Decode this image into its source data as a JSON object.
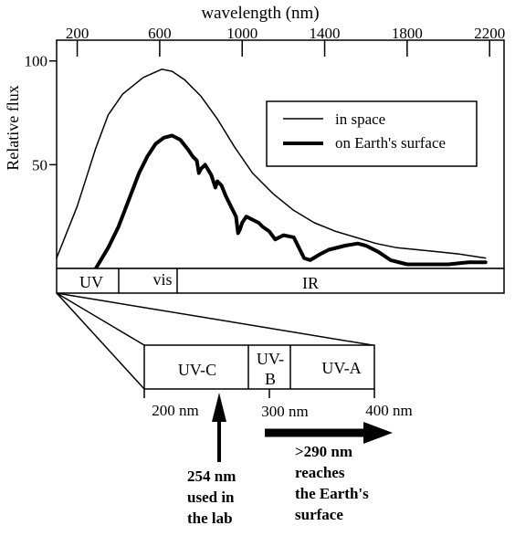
{
  "chart_data": {
    "type": "line",
    "xlabel": "wavelength (nm)",
    "ylabel": "Relative flux",
    "xlim": [
      100,
      2270
    ],
    "ylim": [
      0,
      110
    ],
    "x_ticks": [
      200,
      600,
      1000,
      1400,
      1800,
      2200
    ],
    "y_ticks": [
      50,
      100
    ],
    "legend": {
      "placement": "top-right"
    },
    "series": [
      {
        "name": "in space",
        "line": "thin",
        "x": [
          100,
          200,
          290,
          350,
          420,
          520,
          610,
          660,
          720,
          800,
          880,
          960,
          1050,
          1150,
          1250,
          1350,
          1450,
          1550,
          1650,
          1750,
          1850,
          1950,
          2050,
          2180
        ],
        "y": [
          5,
          30,
          58,
          74,
          84,
          92,
          96,
          95,
          91,
          83,
          72,
          59,
          46,
          36,
          28,
          22,
          18,
          15,
          12,
          10,
          9,
          8,
          7,
          5
        ]
      },
      {
        "name": "on Earth's surface",
        "line": "thick",
        "x": [
          290,
          350,
          400,
          450,
          500,
          540,
          580,
          620,
          660,
          700,
          740,
          760,
          780,
          790,
          800,
          820,
          850,
          870,
          880,
          900,
          920,
          950,
          970,
          980,
          990,
          1000,
          1020,
          1080,
          1100,
          1130,
          1160,
          1200,
          1250,
          1300,
          1330,
          1380,
          1420,
          1500,
          1560,
          1600,
          1660,
          1720,
          1800,
          1900,
          2000,
          2100,
          2180
        ],
        "y": [
          0,
          10,
          20,
          33,
          46,
          54,
          60,
          63,
          64,
          62,
          57,
          54,
          52,
          46,
          48,
          50,
          45,
          39,
          42,
          40,
          35,
          29,
          25,
          17,
          19,
          22,
          25,
          22,
          20,
          18,
          14,
          16,
          15,
          5,
          4,
          7,
          9,
          11,
          12,
          11,
          8,
          4,
          2,
          2,
          2,
          3,
          3
        ]
      }
    ],
    "spectrum_bar": [
      {
        "label": "UV",
        "from": 100,
        "to": 400
      },
      {
        "label": "vis",
        "from": 400,
        "to": 700
      },
      {
        "label": "IR",
        "from": 700,
        "to": 2270
      }
    ],
    "uv_detail": {
      "bands": [
        {
          "label": "UV-C",
          "from": 200,
          "to": 280
        },
        {
          "label": "UV-B",
          "lines": [
            "UV-",
            "B"
          ],
          "from": 280,
          "to": 320
        },
        {
          "label": "UV-A",
          "from": 320,
          "to": 400
        }
      ],
      "ticks": [
        {
          "value": 200,
          "label": "200 nm"
        },
        {
          "value": 300,
          "label": "300 nm"
        },
        {
          "value": 400,
          "label": "400 nm"
        }
      ]
    },
    "annotations": [
      {
        "value": 254,
        "lines": [
          "254 nm",
          "used in",
          "the lab"
        ]
      },
      {
        "value": 290,
        "lines": [
          ">290 nm",
          "reaches",
          "the Earth's",
          "surface"
        ]
      }
    ],
    "colors": {
      "ink": "#000000",
      "background": "#ffffff"
    }
  }
}
